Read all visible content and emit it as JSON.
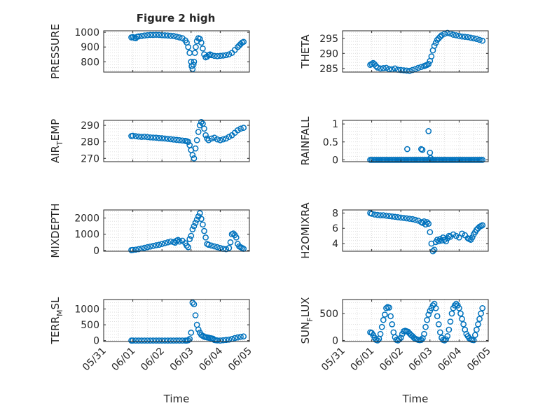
{
  "title": "Figure 2 high",
  "colors": {
    "marker": "#0072BD",
    "axis": "#262626",
    "grid": "#d9d9d9"
  },
  "chart_data": [
    {
      "type": "scatter",
      "id": "pressure",
      "ylabel": "PRESSURE",
      "ylabel_sub": "",
      "ylim": [
        730,
        1010
      ],
      "yticks": [
        800,
        900,
        1000
      ],
      "yticklabels": [
        "800",
        "900",
        "1000"
      ],
      "grid": true,
      "xlabel": "",
      "x": [
        0.95,
        1.0,
        1.05,
        1.1,
        1.15,
        1.2,
        1.3,
        1.4,
        1.5,
        1.6,
        1.7,
        1.8,
        1.9,
        2.0,
        2.1,
        2.2,
        2.3,
        2.4,
        2.5,
        2.6,
        2.7,
        2.8,
        2.85,
        2.9,
        2.95,
        3.0,
        3.02,
        3.05,
        3.08,
        3.1,
        3.13,
        3.16,
        3.2,
        3.25,
        3.3,
        3.35,
        3.4,
        3.45,
        3.5,
        3.55,
        3.6,
        3.65,
        3.7,
        3.8,
        3.9,
        4.0,
        4.1,
        4.2,
        4.3,
        4.4,
        4.5,
        4.6,
        4.65,
        4.7,
        4.75,
        4.8
      ],
      "y": [
        965,
        968,
        962,
        960,
        970,
        972,
        975,
        978,
        980,
        982,
        982,
        983,
        982,
        980,
        979,
        978,
        976,
        975,
        970,
        965,
        960,
        945,
        930,
        900,
        860,
        800,
        770,
        750,
        780,
        800,
        860,
        900,
        940,
        960,
        955,
        930,
        890,
        850,
        830,
        835,
        845,
        850,
        845,
        840,
        838,
        840,
        842,
        845,
        850,
        860,
        880,
        900,
        910,
        920,
        930,
        935
      ]
    },
    {
      "type": "scatter",
      "id": "theta",
      "ylabel": "THETA",
      "ylabel_sub": "",
      "ylim": [
        283.8,
        297.5
      ],
      "yticks": [
        285,
        290,
        295
      ],
      "yticklabels": [
        "285",
        "290",
        "295"
      ],
      "grid": true,
      "xlabel": "",
      "x": [
        0.95,
        1.0,
        1.05,
        1.1,
        1.15,
        1.2,
        1.3,
        1.4,
        1.5,
        1.6,
        1.7,
        1.8,
        1.9,
        2.0,
        2.1,
        2.2,
        2.3,
        2.4,
        2.5,
        2.6,
        2.7,
        2.8,
        2.85,
        2.9,
        2.95,
        3.0,
        3.05,
        3.1,
        3.15,
        3.2,
        3.25,
        3.3,
        3.35,
        3.4,
        3.5,
        3.6,
        3.7,
        3.8,
        3.9,
        4.0,
        4.1,
        4.2,
        4.3,
        4.4,
        4.5,
        4.6,
        4.7,
        4.8
      ],
      "y": [
        286.2,
        286.5,
        286.8,
        286.4,
        285.8,
        285.3,
        285.0,
        285.1,
        285.2,
        284.8,
        284.7,
        285.0,
        284.6,
        284.5,
        284.4,
        284.3,
        284.2,
        284.5,
        284.8,
        285.2,
        285.5,
        285.8,
        286.0,
        286.2,
        286.5,
        287.5,
        289.0,
        291.0,
        292.5,
        293.5,
        294.5,
        295.0,
        295.5,
        296.0,
        296.5,
        296.8,
        296.6,
        296.2,
        296.0,
        295.8,
        295.6,
        295.5,
        295.4,
        295.2,
        295.0,
        294.8,
        294.5,
        294.2
      ]
    },
    {
      "type": "scatter",
      "id": "air_temp",
      "ylabel": "AIR",
      "ylabel_sub": "T",
      "ylabel_suffix": "EMP",
      "ylim": [
        268,
        293
      ],
      "yticks": [
        270,
        280,
        290
      ],
      "yticklabels": [
        "270",
        "280",
        "290"
      ],
      "grid": true,
      "xlabel": "",
      "x": [
        0.95,
        1.0,
        1.1,
        1.2,
        1.3,
        1.4,
        1.5,
        1.6,
        1.7,
        1.8,
        1.9,
        2.0,
        2.1,
        2.2,
        2.3,
        2.4,
        2.5,
        2.6,
        2.7,
        2.8,
        2.85,
        2.9,
        2.95,
        3.0,
        3.05,
        3.1,
        3.15,
        3.2,
        3.25,
        3.3,
        3.35,
        3.4,
        3.45,
        3.5,
        3.55,
        3.6,
        3.7,
        3.8,
        3.9,
        4.0,
        4.1,
        4.2,
        4.3,
        4.4,
        4.5,
        4.6,
        4.7,
        4.8
      ],
      "y": [
        283.5,
        283.7,
        283.4,
        283.2,
        283.0,
        283.1,
        282.9,
        282.7,
        282.6,
        282.5,
        282.3,
        282.2,
        282.0,
        281.8,
        281.6,
        281.4,
        281.2,
        281.0,
        280.8,
        280.6,
        280.4,
        280.0,
        278.0,
        275.0,
        272.0,
        270.0,
        276.0,
        281.0,
        286.0,
        290.0,
        292.0,
        291.0,
        288.0,
        284.0,
        282.0,
        281.0,
        282.0,
        282.5,
        281.5,
        281.0,
        281.5,
        282.0,
        283.0,
        284.0,
        285.5,
        287.0,
        288.0,
        288.5
      ]
    },
    {
      "type": "scatter",
      "id": "rainfall",
      "ylabel": "RAINFALL",
      "ylabel_sub": "",
      "ylim": [
        -0.05,
        1.1
      ],
      "yticks": [
        0,
        0.5,
        1
      ],
      "yticklabels": [
        "0",
        "0.5",
        "1"
      ],
      "grid": true,
      "xlabel": "",
      "x": [
        0.95,
        1.0,
        1.05,
        1.1,
        1.15,
        1.2,
        1.25,
        1.3,
        1.35,
        1.4,
        1.45,
        1.5,
        1.55,
        1.6,
        1.65,
        1.7,
        1.75,
        1.8,
        1.85,
        1.9,
        1.95,
        2.0,
        2.05,
        2.1,
        2.15,
        2.2,
        2.25,
        2.3,
        2.35,
        2.4,
        2.45,
        2.5,
        2.55,
        2.6,
        2.65,
        2.7,
        2.75,
        2.8,
        2.85,
        2.9,
        2.95,
        3.0,
        3.05,
        3.1,
        3.15,
        3.2,
        3.25,
        3.3,
        3.35,
        3.4,
        3.45,
        3.5,
        3.55,
        3.6,
        3.65,
        3.7,
        3.75,
        3.8,
        3.85,
        3.9,
        3.95,
        4.0,
        4.05,
        4.1,
        4.15,
        4.2,
        4.25,
        4.3,
        4.35,
        4.4,
        4.45,
        4.5,
        4.55,
        4.6,
        4.65,
        4.7,
        4.75,
        4.8,
        2.22,
        2.7,
        2.74,
        2.95,
        3.0,
        3.02
      ],
      "y": [
        0,
        0,
        0,
        0,
        0,
        0,
        0,
        0,
        0,
        0,
        0,
        0,
        0,
        0,
        0,
        0,
        0,
        0,
        0,
        0,
        0,
        0,
        0,
        0,
        0,
        0,
        0,
        0,
        0,
        0,
        0,
        0,
        0,
        0,
        0,
        0,
        0,
        0,
        0,
        0,
        0,
        0,
        0,
        0,
        0,
        0,
        0,
        0,
        0,
        0,
        0,
        0,
        0,
        0,
        0,
        0,
        0,
        0,
        0,
        0,
        0,
        0,
        0,
        0,
        0,
        0,
        0,
        0,
        0,
        0,
        0,
        0,
        0,
        0,
        0,
        0,
        0,
        0,
        0.3,
        0.3,
        0.28,
        0.8,
        0.2,
        0.05
      ]
    },
    {
      "type": "scatter",
      "id": "mixdepth",
      "ylabel": "MIXDEPTH",
      "ylabel_sub": "",
      "ylim": [
        -50,
        2500
      ],
      "yticks": [
        0,
        1000,
        2000
      ],
      "yticklabels": [
        "0",
        "1000",
        "2000"
      ],
      "grid": true,
      "xlabel": "",
      "x": [
        0.95,
        1.0,
        1.1,
        1.2,
        1.3,
        1.4,
        1.5,
        1.6,
        1.7,
        1.8,
        1.9,
        2.0,
        2.1,
        2.2,
        2.3,
        2.4,
        2.45,
        2.5,
        2.55,
        2.6,
        2.7,
        2.8,
        2.85,
        2.9,
        2.95,
        3.0,
        3.05,
        3.1,
        3.15,
        3.2,
        3.25,
        3.3,
        3.35,
        3.4,
        3.45,
        3.5,
        3.55,
        3.6,
        3.7,
        3.8,
        3.9,
        4.0,
        4.1,
        4.2,
        4.3,
        4.35,
        4.4,
        4.45,
        4.5,
        4.55,
        4.6,
        4.65,
        4.7,
        4.75,
        4.8
      ],
      "y": [
        20,
        30,
        50,
        80,
        120,
        160,
        200,
        240,
        280,
        320,
        350,
        400,
        450,
        500,
        550,
        520,
        480,
        600,
        650,
        550,
        600,
        450,
        300,
        200,
        700,
        900,
        1300,
        1500,
        1700,
        1900,
        2100,
        2300,
        1950,
        1600,
        1200,
        800,
        400,
        350,
        300,
        250,
        200,
        150,
        100,
        80,
        150,
        500,
        1000,
        1050,
        950,
        800,
        400,
        250,
        200,
        150,
        100
      ]
    },
    {
      "type": "scatter",
      "id": "h2omixra",
      "ylabel": "H2OMIXRA",
      "ylabel_sub": "",
      "ylim": [
        3,
        8.4
      ],
      "yticks": [
        4,
        6,
        8
      ],
      "yticklabels": [
        "4",
        "6",
        "8"
      ],
      "grid": true,
      "xlabel": "",
      "x": [
        0.95,
        1.0,
        1.1,
        1.2,
        1.3,
        1.4,
        1.5,
        1.6,
        1.7,
        1.8,
        1.9,
        2.0,
        2.1,
        2.2,
        2.3,
        2.4,
        2.5,
        2.6,
        2.7,
        2.75,
        2.8,
        2.85,
        2.9,
        2.95,
        3.0,
        3.05,
        3.1,
        3.15,
        3.2,
        3.25,
        3.3,
        3.35,
        3.4,
        3.45,
        3.5,
        3.55,
        3.6,
        3.65,
        3.7,
        3.8,
        3.9,
        4.0,
        4.1,
        4.2,
        4.3,
        4.35,
        4.4,
        4.45,
        4.5,
        4.55,
        4.6,
        4.65,
        4.7,
        4.75,
        4.8
      ],
      "y": [
        8.0,
        7.9,
        7.8,
        7.75,
        7.7,
        7.7,
        7.65,
        7.6,
        7.55,
        7.5,
        7.45,
        7.4,
        7.35,
        7.3,
        7.25,
        7.2,
        7.1,
        7.0,
        6.8,
        6.7,
        6.9,
        6.5,
        6.8,
        6.6,
        5.5,
        4.0,
        3.0,
        3.2,
        4.2,
        4.5,
        4.3,
        4.6,
        4.4,
        4.8,
        4.5,
        4.3,
        4.7,
        5.0,
        4.9,
        5.2,
        5.0,
        4.8,
        5.3,
        5.1,
        4.7,
        4.6,
        4.5,
        4.8,
        5.2,
        5.5,
        5.8,
        6.0,
        6.2,
        6.3,
        6.4
      ]
    },
    {
      "type": "scatter",
      "id": "terr_msl",
      "ylabel": "TERR",
      "ylabel_sub": "M",
      "ylabel_suffix": "SL",
      "ylim": [
        -30,
        1300
      ],
      "yticks": [
        0,
        500,
        1000
      ],
      "yticklabels": [
        "0",
        "500",
        "1000"
      ],
      "grid": true,
      "xlabel": "Time",
      "x": [
        0.95,
        1.0,
        1.1,
        1.2,
        1.3,
        1.4,
        1.5,
        1.6,
        1.7,
        1.8,
        1.9,
        2.0,
        2.1,
        2.2,
        2.3,
        2.4,
        2.5,
        2.6,
        2.7,
        2.8,
        2.85,
        2.9,
        2.95,
        3.0,
        3.05,
        3.1,
        3.15,
        3.2,
        3.25,
        3.3,
        3.35,
        3.4,
        3.45,
        3.5,
        3.55,
        3.6,
        3.65,
        3.7,
        3.75,
        3.8,
        3.85,
        3.9,
        4.0,
        4.1,
        4.2,
        4.3,
        4.4,
        4.5,
        4.6,
        4.7,
        4.8
      ],
      "y": [
        0,
        0,
        0,
        0,
        0,
        0,
        0,
        0,
        0,
        0,
        0,
        0,
        0,
        0,
        0,
        0,
        0,
        0,
        0,
        0,
        0,
        10,
        50,
        250,
        1200,
        1150,
        800,
        500,
        350,
        250,
        180,
        150,
        120,
        110,
        100,
        90,
        80,
        70,
        60,
        20,
        10,
        5,
        0,
        10,
        20,
        30,
        50,
        80,
        100,
        120,
        130
      ]
    },
    {
      "type": "scatter",
      "id": "sun_flux",
      "ylabel": "SUN",
      "ylabel_sub": "F",
      "ylabel_suffix": "LUX",
      "ylim": [
        -20,
        760
      ],
      "yticks": [
        0,
        500
      ],
      "yticklabels": [
        "0",
        "500"
      ],
      "grid": true,
      "xlabel": "Time",
      "xticklabels": [
        "05/31",
        "06/01",
        "06/02",
        "06/03",
        "06/04",
        "06/05"
      ],
      "x": [
        0.95,
        1.0,
        1.05,
        1.1,
        1.15,
        1.2,
        1.25,
        1.3,
        1.35,
        1.4,
        1.45,
        1.5,
        1.55,
        1.6,
        1.65,
        1.7,
        1.75,
        1.8,
        1.85,
        1.9,
        1.95,
        2.0,
        2.05,
        2.1,
        2.15,
        2.2,
        2.25,
        2.3,
        2.35,
        2.4,
        2.45,
        2.5,
        2.55,
        2.6,
        2.65,
        2.7,
        2.75,
        2.8,
        2.85,
        2.9,
        2.95,
        3.0,
        3.05,
        3.1,
        3.15,
        3.2,
        3.25,
        3.3,
        3.35,
        3.4,
        3.45,
        3.5,
        3.55,
        3.6,
        3.65,
        3.7,
        3.75,
        3.8,
        3.85,
        3.9,
        3.95,
        4.0,
        4.05,
        4.1,
        4.15,
        4.2,
        4.25,
        4.3,
        4.35,
        4.4,
        4.45,
        4.5,
        4.55,
        4.6,
        4.65,
        4.7,
        4.75,
        4.8
      ],
      "y": [
        150,
        140,
        100,
        50,
        10,
        0,
        30,
        120,
        250,
        380,
        480,
        600,
        620,
        610,
        450,
        300,
        150,
        60,
        10,
        0,
        20,
        50,
        120,
        170,
        180,
        170,
        160,
        130,
        100,
        80,
        50,
        30,
        20,
        10,
        5,
        10,
        40,
        120,
        250,
        380,
        480,
        550,
        600,
        650,
        680,
        600,
        450,
        300,
        150,
        50,
        10,
        0,
        20,
        80,
        200,
        350,
        500,
        600,
        650,
        680,
        650,
        600,
        500,
        400,
        300,
        200,
        120,
        80,
        40,
        20,
        10,
        5,
        100,
        200,
        300,
        400,
        500,
        600
      ]
    }
  ],
  "shared_x": {
    "xlim": [
      0,
      5
    ],
    "xticks": [
      0,
      1,
      2,
      3,
      4,
      5
    ],
    "minor_xticks": [
      0.5,
      1.5,
      2.5,
      3.5,
      4.5
    ],
    "xticklabels": [
      "05/31",
      "06/01",
      "06/02",
      "06/03",
      "06/04",
      "06/05"
    ]
  }
}
